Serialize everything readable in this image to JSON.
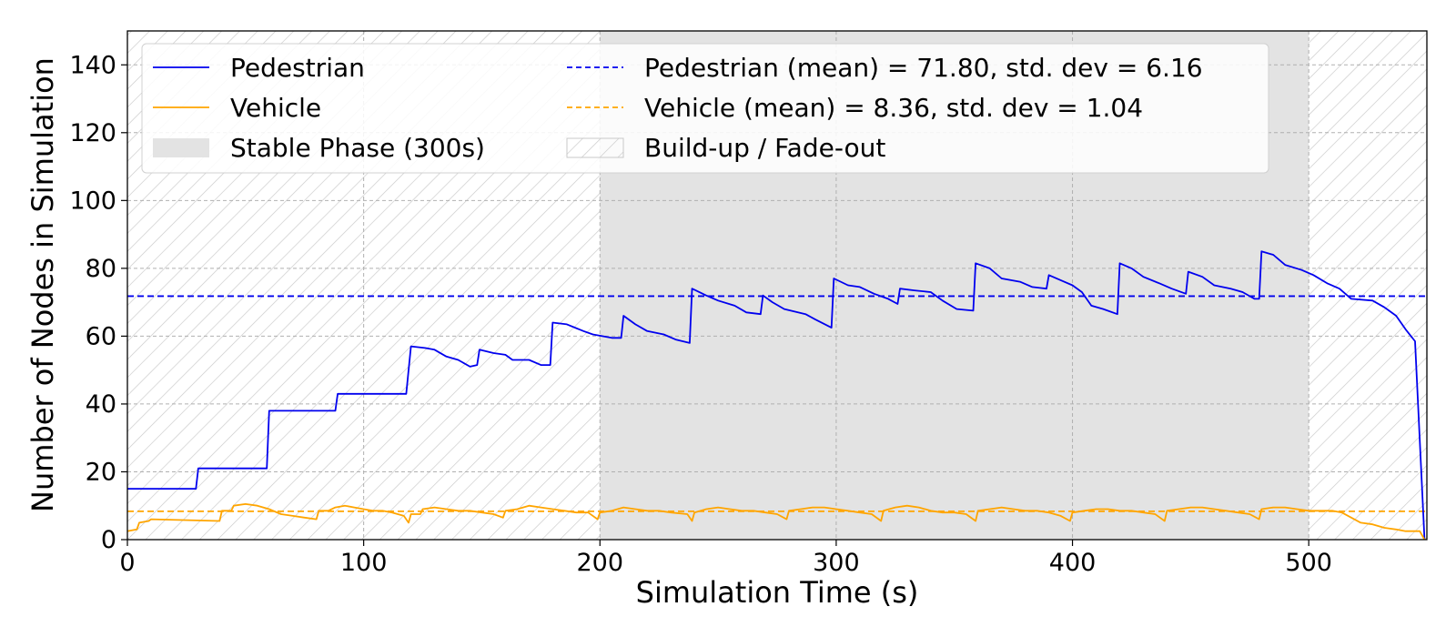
{
  "chart_data": {
    "type": "line",
    "xlabel": "Simulation Time (s)",
    "ylabel": "Number of Nodes in Simulation",
    "xlim": [
      0,
      550
    ],
    "ylim": [
      0,
      150
    ],
    "xticks": [
      0,
      100,
      200,
      300,
      400,
      500
    ],
    "yticks": [
      0,
      20,
      40,
      60,
      80,
      100,
      120,
      140
    ],
    "grid": true,
    "legend_position": "top",
    "regions": [
      {
        "name": "Build-up / Fade-out",
        "start": 0,
        "end": 200,
        "style": "hatched"
      },
      {
        "name": "Stable Phase (300s)",
        "start": 200,
        "end": 500,
        "style": "shaded",
        "color": "#e3e3e3"
      },
      {
        "name": "Build-up / Fade-out",
        "start": 500,
        "end": 550,
        "style": "hatched"
      }
    ],
    "series": [
      {
        "name": "Pedestrian",
        "color": "#0000ee",
        "style": "solid",
        "points": [
          [
            0,
            15
          ],
          [
            29,
            15
          ],
          [
            30,
            21
          ],
          [
            59,
            21
          ],
          [
            60,
            38
          ],
          [
            88,
            38
          ],
          [
            89,
            43
          ],
          [
            118,
            43
          ],
          [
            120,
            57
          ],
          [
            126,
            56.5
          ],
          [
            130,
            56
          ],
          [
            135,
            54
          ],
          [
            140,
            53
          ],
          [
            145,
            51
          ],
          [
            148,
            51.5
          ],
          [
            149,
            56
          ],
          [
            155,
            55
          ],
          [
            160,
            54.5
          ],
          [
            163,
            53
          ],
          [
            170,
            53
          ],
          [
            175,
            51.5
          ],
          [
            179,
            51.5
          ],
          [
            180,
            64
          ],
          [
            186,
            63.5
          ],
          [
            193,
            61.5
          ],
          [
            197,
            60.5
          ],
          [
            205,
            59.5
          ],
          [
            209,
            59.5
          ],
          [
            210,
            66
          ],
          [
            215,
            63.5
          ],
          [
            220,
            61.5
          ],
          [
            227,
            60.5
          ],
          [
            232,
            59
          ],
          [
            238,
            58
          ],
          [
            239,
            74
          ],
          [
            245,
            72
          ],
          [
            250,
            70.5
          ],
          [
            257,
            69
          ],
          [
            262,
            67
          ],
          [
            268,
            66.5
          ],
          [
            269,
            72
          ],
          [
            273,
            70
          ],
          [
            278,
            68
          ],
          [
            287,
            66.5
          ],
          [
            291,
            65
          ],
          [
            298,
            62.5
          ],
          [
            299,
            77
          ],
          [
            305,
            75
          ],
          [
            310,
            74.5
          ],
          [
            316,
            72.5
          ],
          [
            322,
            71
          ],
          [
            326,
            69.5
          ],
          [
            327,
            74
          ],
          [
            333,
            73.5
          ],
          [
            340,
            73
          ],
          [
            345,
            70.5
          ],
          [
            351,
            68
          ],
          [
            358,
            67.5
          ],
          [
            359,
            81.5
          ],
          [
            365,
            80
          ],
          [
            370,
            77
          ],
          [
            378,
            76
          ],
          [
            383,
            74.5
          ],
          [
            389,
            74
          ],
          [
            390,
            78
          ],
          [
            395,
            76.5
          ],
          [
            400,
            75
          ],
          [
            404,
            73
          ],
          [
            408,
            69
          ],
          [
            413,
            68
          ],
          [
            419,
            66.5
          ],
          [
            420,
            81.5
          ],
          [
            425,
            80
          ],
          [
            430,
            77.5
          ],
          [
            437,
            75.5
          ],
          [
            442,
            74
          ],
          [
            448,
            72.5
          ],
          [
            449,
            79
          ],
          [
            455,
            77.5
          ],
          [
            460,
            75
          ],
          [
            467,
            74
          ],
          [
            472,
            73
          ],
          [
            477,
            71
          ],
          [
            479,
            71
          ],
          [
            480,
            85
          ],
          [
            485,
            84
          ],
          [
            490,
            81
          ],
          [
            497,
            79.5
          ],
          [
            502,
            78
          ],
          [
            508,
            75.5
          ],
          [
            513,
            74
          ],
          [
            518,
            71
          ],
          [
            527,
            70.5
          ],
          [
            532,
            68.5
          ],
          [
            537,
            66
          ],
          [
            541,
            62
          ],
          [
            545,
            58.5
          ],
          [
            549,
            0
          ]
        ]
      },
      {
        "name": "Vehicle",
        "color": "#ffa500",
        "style": "solid",
        "points": [
          [
            0,
            2.5
          ],
          [
            4,
            3
          ],
          [
            5,
            5
          ],
          [
            9,
            5.5
          ],
          [
            10,
            6
          ],
          [
            39,
            5.5
          ],
          [
            40,
            8.5
          ],
          [
            44,
            8.5
          ],
          [
            45,
            10
          ],
          [
            50,
            10.5
          ],
          [
            55,
            10
          ],
          [
            60,
            9
          ],
          [
            65,
            7.5
          ],
          [
            70,
            7
          ],
          [
            75,
            6.5
          ],
          [
            80,
            6
          ],
          [
            81,
            8.5
          ],
          [
            85,
            8.5
          ],
          [
            88,
            9.5
          ],
          [
            92,
            10
          ],
          [
            96,
            9.5
          ],
          [
            100,
            9
          ],
          [
            104,
            8.5
          ],
          [
            108,
            8.5
          ],
          [
            112,
            8
          ],
          [
            117,
            7
          ],
          [
            119,
            5
          ],
          [
            120,
            7.5
          ],
          [
            124,
            7.5
          ],
          [
            125,
            9
          ],
          [
            130,
            9.5
          ],
          [
            135,
            9
          ],
          [
            140,
            8.5
          ],
          [
            145,
            8.5
          ],
          [
            150,
            8
          ],
          [
            155,
            7.5
          ],
          [
            159,
            6.5
          ],
          [
            160,
            8.5
          ],
          [
            165,
            9
          ],
          [
            170,
            10
          ],
          [
            175,
            9.5
          ],
          [
            180,
            9
          ],
          [
            185,
            8.5
          ],
          [
            190,
            8
          ],
          [
            195,
            8
          ],
          [
            199,
            6
          ],
          [
            200,
            8
          ],
          [
            205,
            8.5
          ],
          [
            210,
            9.5
          ],
          [
            215,
            9
          ],
          [
            220,
            8.5
          ],
          [
            225,
            8.5
          ],
          [
            230,
            8
          ],
          [
            237,
            7.5
          ],
          [
            239,
            5.5
          ],
          [
            240,
            8
          ],
          [
            245,
            9
          ],
          [
            250,
            9.5
          ],
          [
            255,
            9
          ],
          [
            260,
            8.5
          ],
          [
            265,
            8.5
          ],
          [
            270,
            8
          ],
          [
            275,
            7.5
          ],
          [
            279,
            6
          ],
          [
            280,
            8.5
          ],
          [
            285,
            9
          ],
          [
            290,
            9.5
          ],
          [
            295,
            9.5
          ],
          [
            300,
            9
          ],
          [
            305,
            8.5
          ],
          [
            310,
            8
          ],
          [
            315,
            7.5
          ],
          [
            319,
            5.5
          ],
          [
            320,
            8.5
          ],
          [
            325,
            9.5
          ],
          [
            330,
            10
          ],
          [
            335,
            9.5
          ],
          [
            340,
            8.5
          ],
          [
            345,
            8
          ],
          [
            350,
            8
          ],
          [
            355,
            7.5
          ],
          [
            359,
            5.5
          ],
          [
            360,
            8.5
          ],
          [
            365,
            9
          ],
          [
            370,
            9.5
          ],
          [
            375,
            9
          ],
          [
            380,
            8.5
          ],
          [
            385,
            8.5
          ],
          [
            390,
            8
          ],
          [
            395,
            7
          ],
          [
            399,
            5.5
          ],
          [
            400,
            8
          ],
          [
            405,
            8.5
          ],
          [
            410,
            9
          ],
          [
            415,
            9
          ],
          [
            420,
            8.5
          ],
          [
            425,
            8.5
          ],
          [
            430,
            8
          ],
          [
            435,
            7.5
          ],
          [
            439,
            5.5
          ],
          [
            440,
            8.5
          ],
          [
            445,
            9
          ],
          [
            450,
            9.5
          ],
          [
            455,
            9.5
          ],
          [
            460,
            9
          ],
          [
            465,
            8.5
          ],
          [
            470,
            8
          ],
          [
            475,
            7.5
          ],
          [
            479,
            6
          ],
          [
            480,
            9
          ],
          [
            485,
            9.5
          ],
          [
            490,
            9.5
          ],
          [
            495,
            9
          ],
          [
            500,
            8.5
          ],
          [
            505,
            8.5
          ],
          [
            510,
            8.5
          ],
          [
            514,
            8
          ],
          [
            518,
            6.5
          ],
          [
            522,
            5
          ],
          [
            527,
            4.5
          ],
          [
            532,
            3.5
          ],
          [
            537,
            3
          ],
          [
            541,
            2.5
          ],
          [
            547,
            2.5
          ],
          [
            549,
            0
          ]
        ]
      }
    ],
    "hlines": [
      {
        "name": "Pedestrian (mean) = 71.80, std. dev = 6.16",
        "y": 71.8,
        "color": "#0000ee",
        "style": "dashed"
      },
      {
        "name": "Vehicle (mean) = 8.36, std. dev = 1.04",
        "y": 8.36,
        "color": "#ffa500",
        "style": "dashed"
      }
    ],
    "legend": [
      {
        "label": "Pedestrian",
        "kind": "line",
        "color": "#0000ee",
        "dash": false
      },
      {
        "label": "Vehicle",
        "kind": "line",
        "color": "#ffa500",
        "dash": false
      },
      {
        "label": "Stable Phase (300s)",
        "kind": "patch",
        "fill": "#e3e3e3",
        "hatch": false
      },
      {
        "label": "Pedestrian (mean) = 71.80, std. dev = 6.16",
        "kind": "line",
        "color": "#0000ee",
        "dash": true
      },
      {
        "label": "Vehicle (mean) = 8.36, std. dev = 1.04",
        "kind": "line",
        "color": "#ffa500",
        "dash": true
      },
      {
        "label": "Build-up / Fade-out",
        "kind": "patch",
        "fill": "#ffffff",
        "hatch": true
      }
    ]
  }
}
